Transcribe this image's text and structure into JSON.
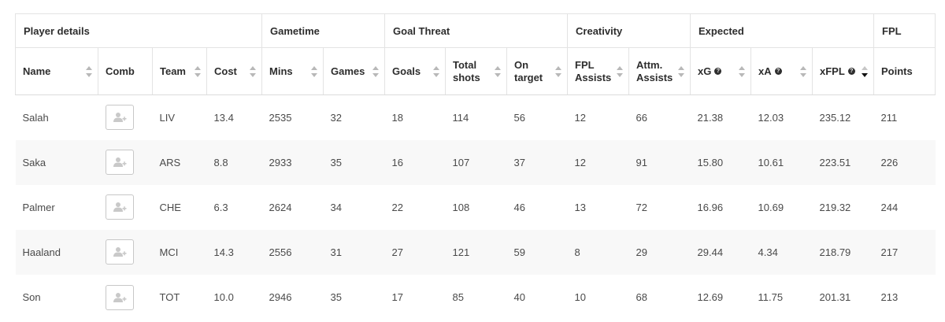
{
  "groups": [
    {
      "label": "Player details",
      "span": 4
    },
    {
      "label": "Gametime",
      "span": 2
    },
    {
      "label": "Goal Threat",
      "span": 3
    },
    {
      "label": "Creativity",
      "span": 2
    },
    {
      "label": "Expected",
      "span": 3
    },
    {
      "label": "FPL",
      "span": 1
    }
  ],
  "columns": {
    "name": "Name",
    "comb": "Comb",
    "team": "Team",
    "cost": "Cost",
    "mins": "Mins",
    "games": "Games",
    "goals": "Goals",
    "total_shots": "Total shots",
    "on_target": "On target",
    "fpl_assists": "FPL Assists",
    "attm_assists": "Attm. Assists",
    "xg": "xG",
    "xa": "xA",
    "xfpl": "xFPL",
    "points": "Points"
  },
  "help_glyph": "?",
  "sorted_column": "xfpl",
  "rows": [
    {
      "name": "Salah",
      "team": "LIV",
      "cost": "13.4",
      "mins": "2535",
      "games": "32",
      "goals": "18",
      "total_shots": "114",
      "on_target": "56",
      "fpl_assists": "12",
      "attm_assists": "66",
      "xg": "21.38",
      "xa": "12.03",
      "xfpl": "235.12",
      "points": "211"
    },
    {
      "name": "Saka",
      "team": "ARS",
      "cost": "8.8",
      "mins": "2933",
      "games": "35",
      "goals": "16",
      "total_shots": "107",
      "on_target": "37",
      "fpl_assists": "12",
      "attm_assists": "91",
      "xg": "15.80",
      "xa": "10.61",
      "xfpl": "223.51",
      "points": "226"
    },
    {
      "name": "Palmer",
      "team": "CHE",
      "cost": "6.3",
      "mins": "2624",
      "games": "34",
      "goals": "22",
      "total_shots": "108",
      "on_target": "46",
      "fpl_assists": "13",
      "attm_assists": "72",
      "xg": "16.96",
      "xa": "10.69",
      "xfpl": "219.32",
      "points": "244"
    },
    {
      "name": "Haaland",
      "team": "MCI",
      "cost": "14.3",
      "mins": "2556",
      "games": "31",
      "goals": "27",
      "total_shots": "121",
      "on_target": "59",
      "fpl_assists": "8",
      "attm_assists": "29",
      "xg": "29.44",
      "xa": "4.34",
      "xfpl": "218.79",
      "points": "217"
    },
    {
      "name": "Son",
      "team": "TOT",
      "cost": "10.0",
      "mins": "2946",
      "games": "35",
      "goals": "17",
      "total_shots": "85",
      "on_target": "40",
      "fpl_assists": "10",
      "attm_assists": "68",
      "xg": "12.69",
      "xa": "11.75",
      "xfpl": "201.31",
      "points": "213"
    }
  ],
  "row_action_icon": "add-player-icon"
}
